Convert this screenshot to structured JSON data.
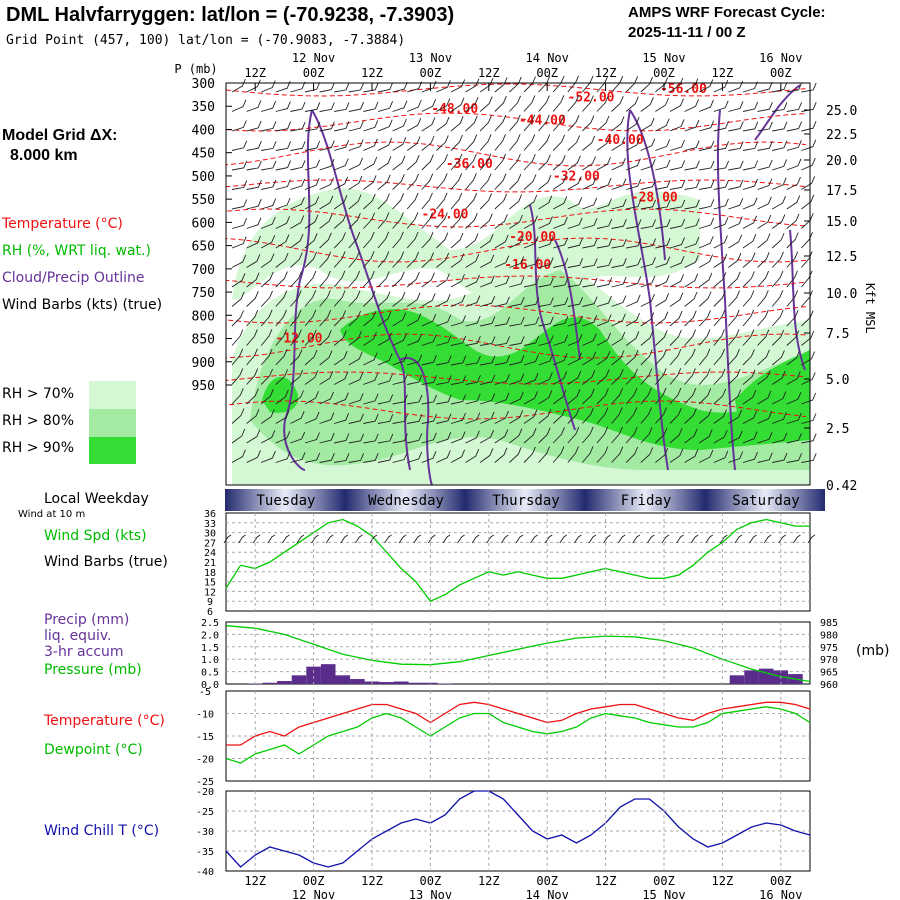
{
  "header": {
    "title": "DML Halvfarryggen:  lat/lon = (-70.9238, -7.3903)",
    "subtitle": "Grid Point (457, 100) lat/lon = (-70.9083, -7.3884)",
    "cycle_line1": "AMPS WRF Forecast Cycle:",
    "cycle_line2": "2025-11-11 / 00  Z"
  },
  "left_panel": {
    "grid_label": "Model Grid ΔX:",
    "grid_value": "8.000 km",
    "temperature": "Temperature (°C)",
    "rh": "RH (%, WRT liq. wat.)",
    "cloud": "Cloud/Precip Outline",
    "wind": "Wind Barbs (kts) (true)",
    "rh70": "RH > 70%",
    "rh80": "RH > 80%",
    "rh90": "RH > 90%",
    "p_unit": "P (mb)",
    "local_weekday": "Local Weekday",
    "wind_at": "Wind at 10 m",
    "wind_spd": "Wind Spd (kts)",
    "wind_barbs": "Wind Barbs (true)",
    "precip1": "Precip (mm)",
    "precip2": "liq. equiv.",
    "precip3": "3-hr accum",
    "pressure": "Pressure (mb)",
    "pressure_unit": "(mb)",
    "temp2": "Temperature (°C)",
    "dewpoint": "Dewpoint (°C)",
    "windchill": "Wind Chill T (°C)",
    "kft": "Kft MSL"
  },
  "colors": {
    "rh70": "#d4f7d4",
    "rh80": "#a3eba3",
    "rh90": "#33dd33",
    "temp": "#ee1111",
    "cloud": "#663399",
    "wind": "#00cc00",
    "precip": "#5a2d8c",
    "chill": "#1111aa"
  },
  "chart_data": {
    "type": "line",
    "time_axis": {
      "top_hours": [
        "12Z",
        "00Z",
        "12Z",
        "00Z",
        "12Z",
        "00Z",
        "12Z",
        "00Z",
        "12Z",
        "00Z"
      ],
      "dates": [
        "12 Nov",
        "13 Nov",
        "14 Nov",
        "15 Nov",
        "16 Nov"
      ],
      "weekdays": [
        "Tuesday",
        "Wednesday",
        "Thursday",
        "Friday",
        "Saturday"
      ]
    },
    "cross_section": {
      "pressure_ticks": [
        "300",
        "350",
        "400",
        "450",
        "500",
        "550",
        "600",
        "650",
        "700",
        "750",
        "800",
        "850",
        "900",
        "950"
      ],
      "height_ticks": [
        "25.0",
        "22.5",
        "20.0",
        "17.5",
        "15.0",
        "12.5",
        "10.0",
        "7.5",
        "5.0",
        "2.5",
        "0.42"
      ],
      "temperature_labels": [
        {
          "t": 75,
          "p": 340,
          "v": "-52.00"
        },
        {
          "t": 94,
          "p": 322,
          "v": "-56.00"
        },
        {
          "t": 47,
          "p": 365,
          "v": "-48.00"
        },
        {
          "t": 65,
          "p": 389,
          "v": "-44.00"
        },
        {
          "t": 81,
          "p": 431,
          "v": "-40.00"
        },
        {
          "t": 50,
          "p": 483,
          "v": "-36.00"
        },
        {
          "t": 72,
          "p": 510,
          "v": "-32.00"
        },
        {
          "t": 88,
          "p": 555,
          "v": "-28.00"
        },
        {
          "t": 45,
          "p": 592,
          "v": "-24.00"
        },
        {
          "t": 63,
          "p": 640,
          "v": "-20.00"
        },
        {
          "t": 62,
          "p": 700,
          "v": "-16.00"
        },
        {
          "t": 15,
          "p": 859,
          "v": "-12.00"
        }
      ]
    },
    "wind_speed": {
      "y_ticks": [
        "36",
        "33",
        "30",
        "27",
        "24",
        "21",
        "18",
        "15",
        "12",
        "9",
        "6"
      ],
      "ylim": [
        6,
        36
      ],
      "t": [
        0,
        3,
        6,
        9,
        12,
        15,
        18,
        21,
        24,
        27,
        30,
        33,
        36,
        39,
        42,
        45,
        48,
        51,
        54,
        57,
        60,
        63,
        66,
        69,
        72,
        75,
        78,
        81,
        84,
        87,
        90,
        93,
        96,
        99,
        102,
        105,
        108,
        111,
        114,
        117,
        120
      ],
      "values": [
        13,
        20,
        19,
        21,
        24,
        27,
        30,
        33,
        34,
        32,
        29,
        24,
        19,
        15,
        9,
        11,
        14,
        16,
        18,
        17,
        18,
        17,
        16,
        16,
        17,
        18,
        19,
        18,
        17,
        16,
        16,
        17,
        20,
        24,
        27,
        31,
        33,
        34,
        33,
        32,
        32
      ]
    },
    "precip_pressure": {
      "precip_ticks": [
        "2.5",
        "2.0",
        "1.5",
        "1.0",
        "0.5",
        "0.0"
      ],
      "pressure_ticks": [
        "985",
        "980",
        "975",
        "970",
        "965",
        "960"
      ],
      "precip_ylim": [
        0,
        2.5
      ],
      "pressure_ylim": [
        960,
        985
      ],
      "precip_t": [
        6,
        9,
        12,
        15,
        18,
        21,
        24,
        27,
        30,
        33,
        36,
        39,
        42,
        45,
        105,
        108,
        111,
        114,
        117
      ],
      "precip_mm": [
        0.02,
        0.05,
        0.12,
        0.35,
        0.7,
        0.8,
        0.35,
        0.2,
        0.1,
        0.08,
        0.1,
        0.05,
        0.05,
        0.02,
        0.35,
        0.55,
        0.62,
        0.55,
        0.4
      ],
      "pressure_t": [
        0,
        6,
        12,
        18,
        24,
        30,
        36,
        42,
        48,
        54,
        60,
        66,
        72,
        78,
        84,
        90,
        96,
        102,
        108,
        114,
        120
      ],
      "pressure_mb": [
        983.5,
        982.5,
        980,
        976,
        972,
        969.5,
        968,
        967.8,
        969,
        971.5,
        974,
        976.5,
        978.5,
        979.3,
        979,
        977.5,
        974.5,
        970,
        966,
        963,
        961
      ]
    },
    "temperature": {
      "y_ticks": [
        "-5",
        "-10",
        "-15",
        "-20",
        "-25"
      ],
      "ylim": [
        -25,
        -5
      ],
      "t": [
        0,
        3,
        6,
        9,
        12,
        15,
        18,
        21,
        24,
        27,
        30,
        33,
        36,
        39,
        42,
        45,
        48,
        51,
        54,
        57,
        60,
        63,
        66,
        69,
        72,
        75,
        78,
        81,
        84,
        87,
        90,
        93,
        96,
        99,
        102,
        105,
        108,
        111,
        114,
        117,
        120
      ],
      "temp": [
        -17,
        -17,
        -15,
        -14,
        -15,
        -13,
        -12,
        -11,
        -10,
        -9,
        -8,
        -8,
        -9,
        -10,
        -12,
        -10,
        -8,
        -7.5,
        -8,
        -9,
        -10,
        -11,
        -12,
        -11.5,
        -10,
        -9,
        -8.5,
        -8,
        -8,
        -9,
        -10,
        -11,
        -11.5,
        -10,
        -9,
        -8.5,
        -8,
        -7.5,
        -7.5,
        -8,
        -9
      ],
      "dewpoint": [
        -20,
        -21,
        -19,
        -18,
        -17,
        -19,
        -17,
        -15,
        -14,
        -13,
        -11,
        -10,
        -11,
        -13,
        -15,
        -13,
        -11,
        -10,
        -10,
        -12,
        -13,
        -14,
        -14.5,
        -14,
        -13,
        -11,
        -10,
        -10.5,
        -11,
        -12,
        -12.5,
        -13,
        -13,
        -12,
        -10,
        -9.5,
        -9,
        -8.5,
        -9,
        -10,
        -12
      ]
    },
    "wind_chill": {
      "y_ticks": [
        "-20",
        "-25",
        "-30",
        "-35",
        "-40"
      ],
      "ylim": [
        -40,
        -20
      ],
      "t": [
        0,
        3,
        6,
        9,
        12,
        15,
        18,
        21,
        24,
        27,
        30,
        33,
        36,
        39,
        42,
        45,
        48,
        51,
        54,
        57,
        60,
        63,
        66,
        69,
        72,
        75,
        78,
        81,
        84,
        87,
        90,
        93,
        96,
        99,
        102,
        105,
        108,
        111,
        114,
        117,
        120
      ],
      "values": [
        -35,
        -39,
        -36,
        -34,
        -35,
        -36,
        -38,
        -39,
        -38,
        -35,
        -32,
        -30,
        -28,
        -27,
        -28,
        -26,
        -22,
        -20,
        -20,
        -22,
        -26,
        -30,
        -32,
        -31,
        -33,
        -31,
        -28,
        -24,
        -22,
        -22,
        -25,
        -29,
        -32,
        -34,
        -33,
        -31,
        -29,
        -28,
        -28.5,
        -30,
        -31
      ]
    }
  }
}
